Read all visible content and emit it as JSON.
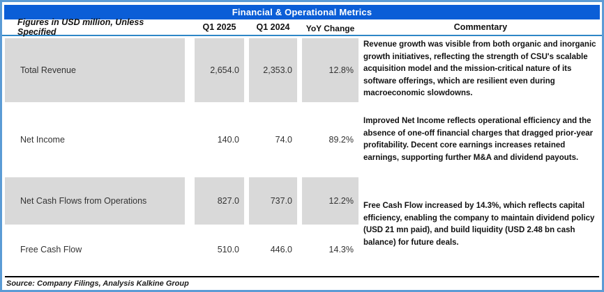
{
  "title": "Financial & Operational Metrics",
  "header": {
    "metric_label": "Figures in USD million, Unless Specified",
    "col_q1_2025": "Q1 2025",
    "col_q1_2024": "Q1 2024",
    "col_yoy": "YoY Change",
    "col_commentary": "Commentary"
  },
  "rows": [
    {
      "metric": "Total Revenue",
      "q1_2025": "2,654.0",
      "q1_2024": "2,353.0",
      "yoy": "12.8%"
    },
    {
      "metric": "Net Income",
      "q1_2025": "140.0",
      "q1_2024": "74.0",
      "yoy": "89.2%"
    },
    {
      "metric": "Net Cash Flows from Operations",
      "q1_2025": "827.0",
      "q1_2024": "737.0",
      "yoy": "12.2%"
    },
    {
      "metric": "Free Cash Flow",
      "q1_2025": "510.0",
      "q1_2024": "446.0",
      "yoy": "14.3%"
    }
  ],
  "commentary": [
    "Revenue growth was visible from both organic and inorganic growth initiatives, reflecting the strength of CSU's scalable acquisition model and the mission-critical nature of its software offerings, which are resilient even during macroeconomic slowdowns.",
    "Improved Net Income reflects operational efficiency and the absence of one-off financial charges that dragged prior-year profitability. Decent core earnings increases retained earnings, supporting further M&A and dividend payouts.",
    "Free Cash Flow increased by 14.3%, which reflects capital efficiency, enabling the company to maintain dividend policy (USD 21 mn paid), and build liquidity (USD 2.48 bn cash balance) for future deals."
  ],
  "footer": {
    "source": "Source: Company Filings, Analysis Kalkine Group"
  },
  "colors": {
    "title_bar": "#0B5ED7",
    "frame_border": "#5B9BD5",
    "header_rule": "#2E86C6",
    "cell_shading": "#D9D9D9",
    "footer_rule": "#000000"
  }
}
